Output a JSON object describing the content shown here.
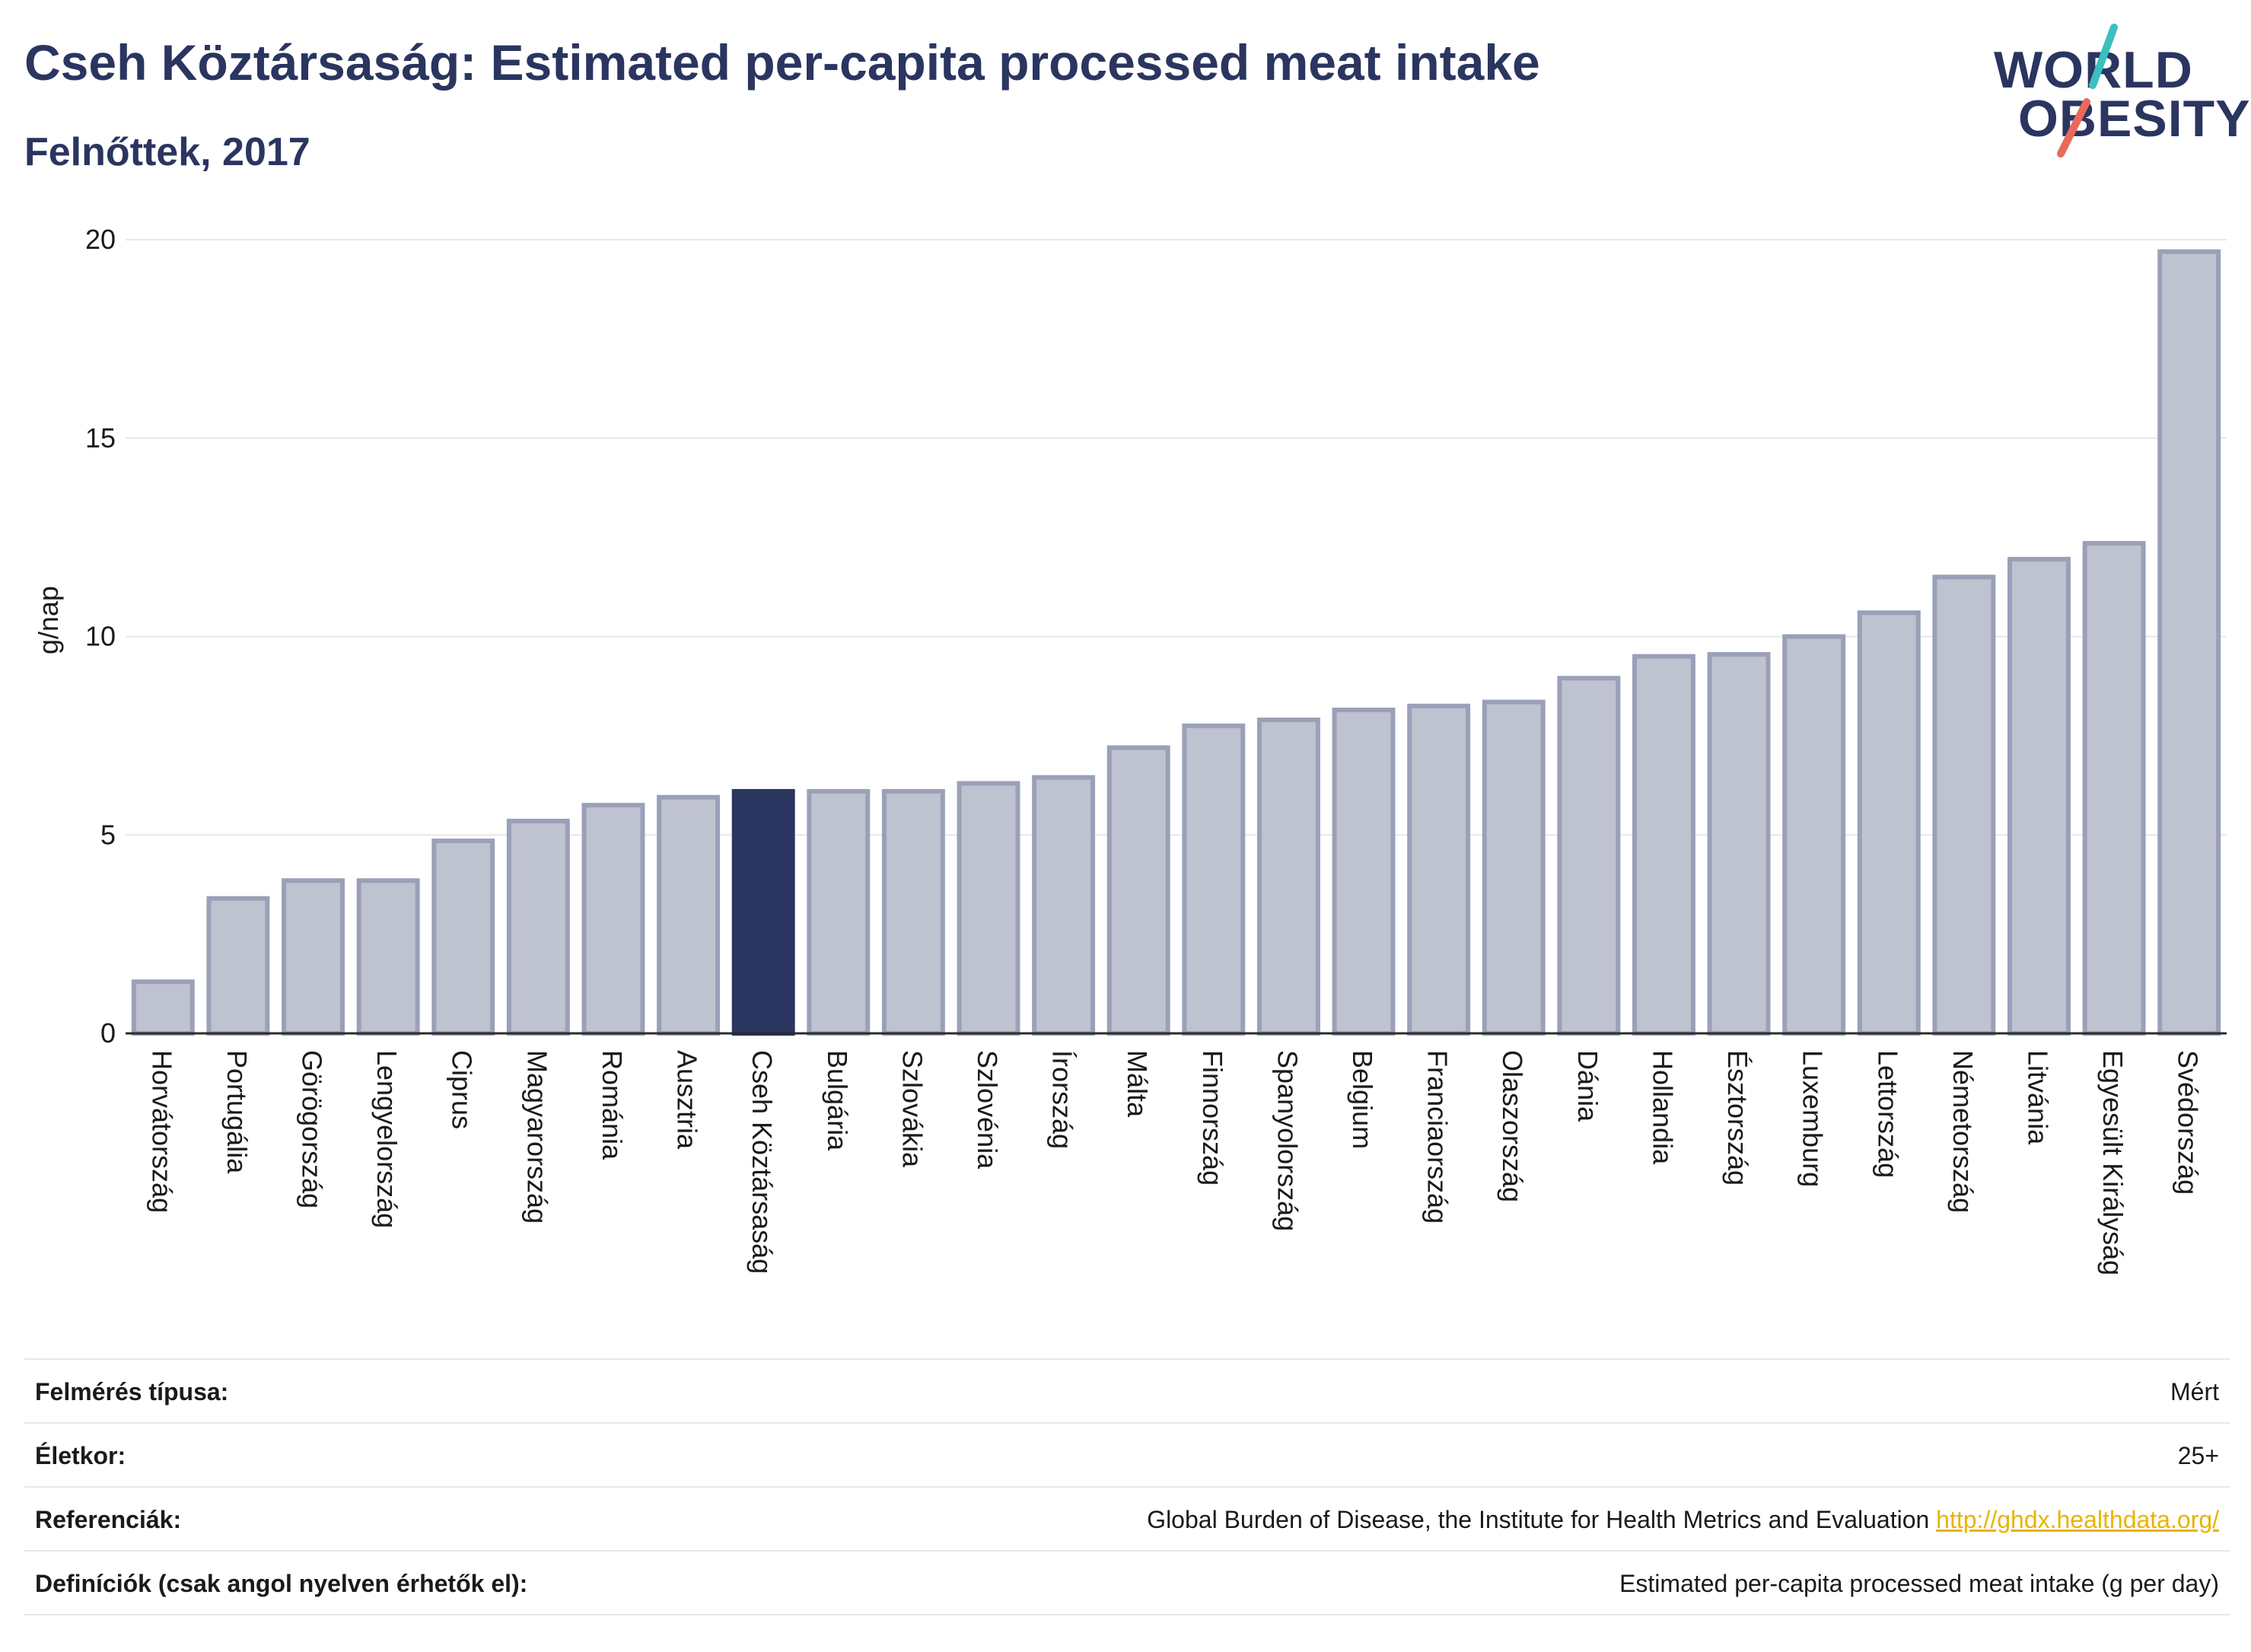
{
  "header": {
    "title": "Cseh Köztársaság: Estimated per-capita processed meat intake",
    "subtitle": "Felnőttek, 2017"
  },
  "logo": {
    "line1": "WORLD",
    "line2": "OBESITY",
    "accent_colors": [
      "#3bbfc1",
      "#e86a5a"
    ]
  },
  "chart_data": {
    "type": "bar",
    "ylabel": "g/nap",
    "ylim": [
      0,
      20
    ],
    "yticks": [
      0,
      5,
      10,
      15,
      20
    ],
    "highlight": "Cseh Köztársaság",
    "colors": {
      "bar": "#bfc2cf",
      "bar_edge": "#9aa0b8",
      "highlight": "#2a3560"
    },
    "categories": [
      "Horvátország",
      "Portugália",
      "Görögország",
      "Lengyelország",
      "Ciprus",
      "Magyarország",
      "Románia",
      "Ausztria",
      "Cseh Köztársaság",
      "Bulgária",
      "Szlovákia",
      "Szlovénia",
      "Írország",
      "Málta",
      "Finnország",
      "Spanyolország",
      "Belgium",
      "Franciaország",
      "Olaszország",
      "Dánia",
      "Hollandia",
      "Észtország",
      "Luxemburg",
      "Lettország",
      "Németország",
      "Litvánia",
      "Egyesült Királyság",
      "Svédország"
    ],
    "values": [
      1.3,
      3.4,
      3.85,
      3.85,
      4.85,
      5.35,
      5.75,
      5.95,
      6.1,
      6.1,
      6.1,
      6.3,
      6.45,
      7.2,
      7.75,
      7.9,
      8.15,
      8.25,
      8.35,
      8.95,
      9.5,
      9.55,
      10.0,
      10.6,
      11.5,
      11.95,
      12.35,
      19.7
    ]
  },
  "info": [
    {
      "label": "Felmérés típusa:",
      "value": "Mért"
    },
    {
      "label": "Életkor:",
      "value": "25+"
    },
    {
      "label": "Referenciák:",
      "value": "Global Burden of Disease, the Institute for Health Metrics and Evaluation",
      "link": "http://ghdx.healthdata.org/"
    },
    {
      "label": "Definíciók (csak angol nyelven érhetők el):",
      "value": "Estimated per-capita processed meat intake (g per day)"
    }
  ]
}
